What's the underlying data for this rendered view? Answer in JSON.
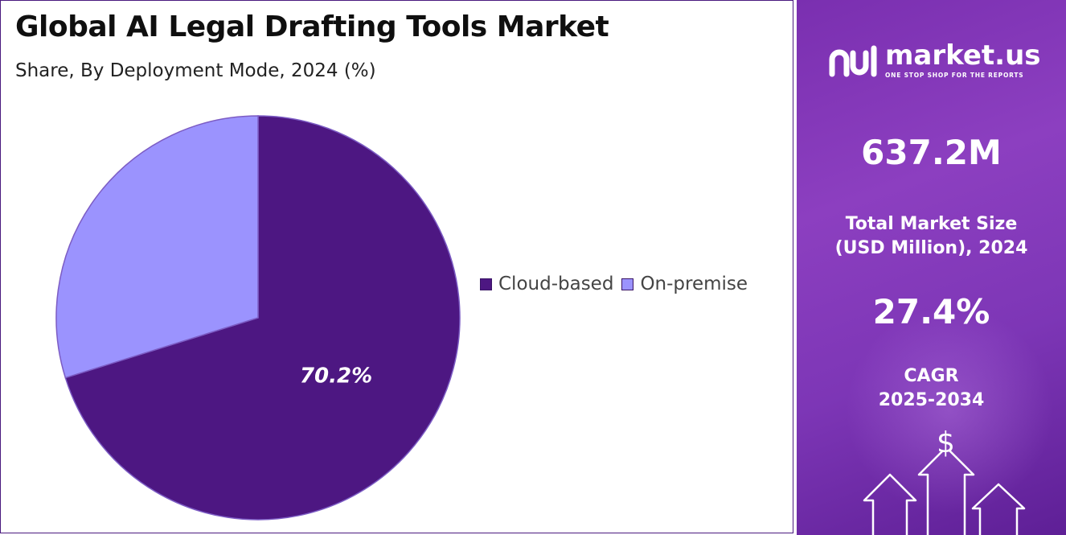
{
  "header": {
    "title": "Global AI Legal Drafting Tools Market",
    "subtitle": "Share, By Deployment Mode, 2024 (%)"
  },
  "chart_data": {
    "type": "pie",
    "categories": [
      "Cloud-based",
      "On-premise"
    ],
    "values": [
      70.2,
      29.8
    ],
    "colors": [
      "#4d1782",
      "#9b93fe"
    ],
    "data_labels": [
      "70.2%",
      ""
    ],
    "legend_position": "right"
  },
  "legend": {
    "items": [
      {
        "label": "Cloud-based",
        "color": "#4d1782"
      },
      {
        "label": "On-premise",
        "color": "#9b93fe"
      }
    ]
  },
  "sidebar": {
    "brand_name": "market.us",
    "brand_tagline": "ONE STOP SHOP FOR THE REPORTS",
    "market_size_value": "637.2M",
    "market_size_label_line1": "Total Market Size",
    "market_size_label_line2": "(USD Million), 2024",
    "cagr_value": "27.4%",
    "cagr_label_line1": "CAGR",
    "cagr_label_line2": "2025-2034",
    "currency_symbol": "$",
    "icons": [
      "market-us-logo-icon",
      "dollar-icon",
      "up-arrow-icon"
    ]
  }
}
